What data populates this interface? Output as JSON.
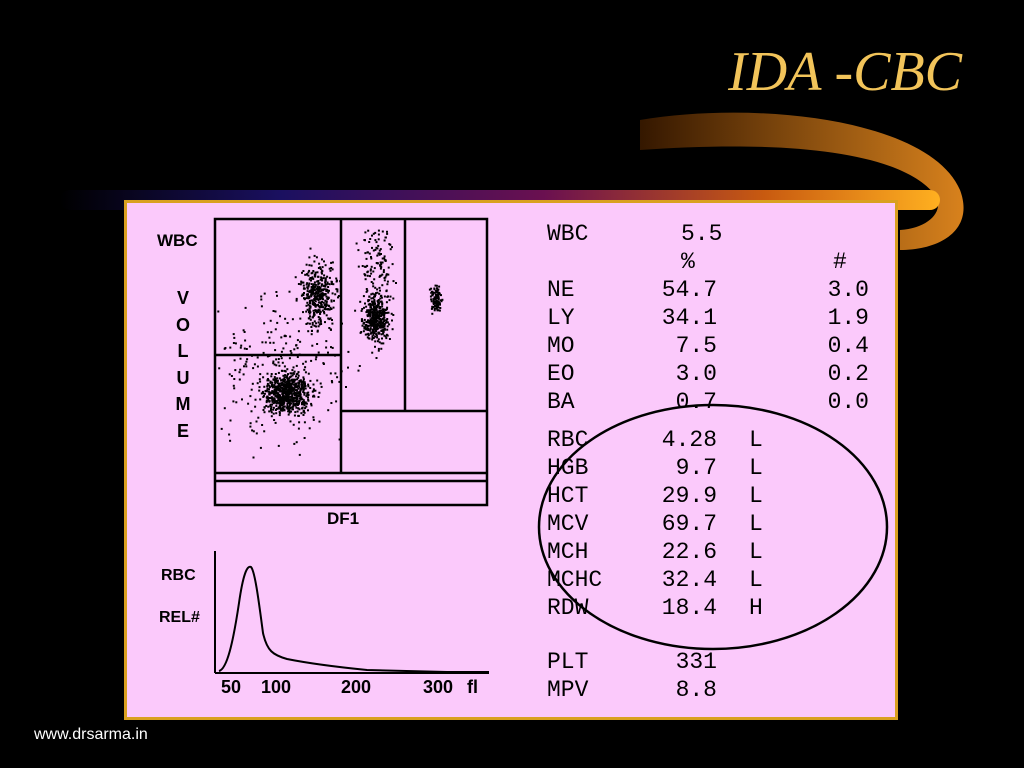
{
  "slide": {
    "title": "IDA -CBC",
    "footer": "www.drsarma.in"
  },
  "scatter": {
    "y_label": "WBC",
    "y_label_vertical": [
      "V",
      "O",
      "L",
      "U",
      "M",
      "E"
    ],
    "x_label": "DF1"
  },
  "histogram": {
    "y_label_1": "RBC",
    "y_label_2": "REL#",
    "ticks": [
      "50",
      "100",
      "200",
      "300",
      "fl"
    ]
  },
  "wbc": {
    "label": "WBC",
    "value": "5.5"
  },
  "diff_headers": {
    "pct": "%",
    "abs": "#"
  },
  "diff": [
    {
      "name": "NE",
      "pct": "54.7",
      "abs": "3.0"
    },
    {
      "name": "LY",
      "pct": "34.1",
      "abs": "1.9"
    },
    {
      "name": "MO",
      "pct": "7.5",
      "abs": "0.4"
    },
    {
      "name": "EO",
      "pct": "3.0",
      "abs": "0.2"
    },
    {
      "name": "BA",
      "pct": "0.7",
      "abs": "0.0"
    }
  ],
  "rbc_indices": [
    {
      "name": "RBC",
      "value": "4.28",
      "flag": "L"
    },
    {
      "name": "HGB",
      "value": "9.7",
      "flag": "L"
    },
    {
      "name": "HCT",
      "value": "29.9",
      "flag": "L"
    },
    {
      "name": "MCV",
      "value": "69.7",
      "flag": "L"
    },
    {
      "name": "MCH",
      "value": "22.6",
      "flag": "L"
    },
    {
      "name": "MCHC",
      "value": "32.4",
      "flag": "L"
    },
    {
      "name": "RDW",
      "value": "18.4",
      "flag": "H"
    }
  ],
  "platelets": [
    {
      "name": "PLT",
      "value": "331"
    },
    {
      "name": "MPV",
      "value": "8.8"
    }
  ]
}
